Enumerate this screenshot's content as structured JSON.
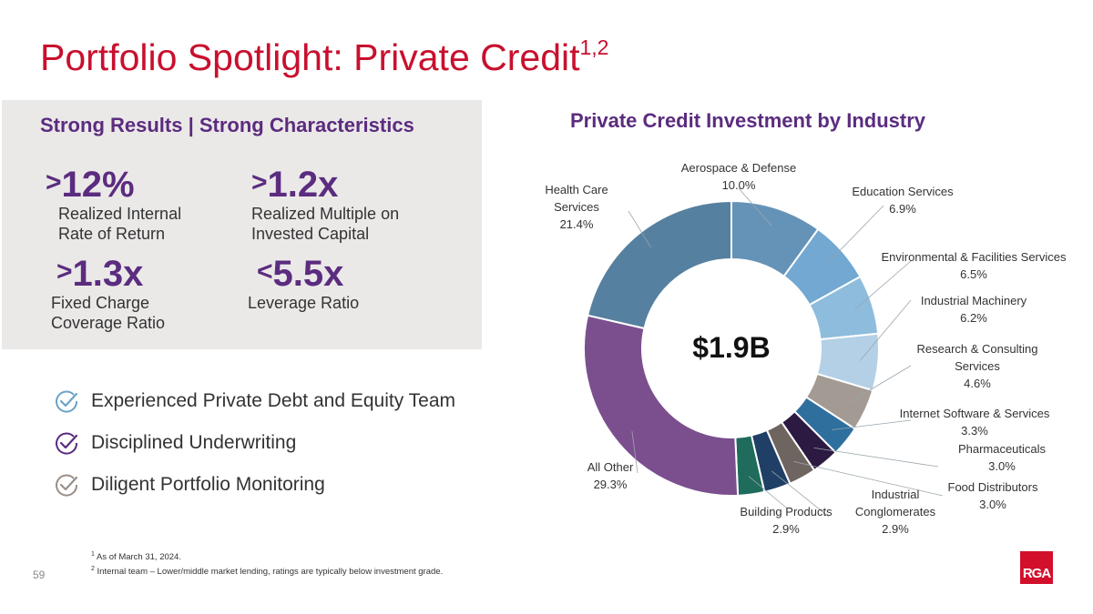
{
  "slide": {
    "title": "Portfolio Spotlight: Private Credit",
    "title_sup": "1,2",
    "page_number": "59",
    "logo_text": "RGA"
  },
  "panel": {
    "heading": "Strong Results | Strong Characteristics",
    "metrics": [
      {
        "symbol": ">",
        "value": "12%",
        "label1": "Realized Internal",
        "label2": "Rate of Return"
      },
      {
        "symbol": ">",
        "value": "1.2x",
        "label1": "Realized Multiple on",
        "label2": "Invested Capital"
      },
      {
        "symbol": ">",
        "value": "1.3x",
        "label1": "Fixed Charge",
        "label2": "Coverage Ratio"
      },
      {
        "symbol": "<",
        "value": "5.5x",
        "label1": "Leverage Ratio",
        "label2": ""
      }
    ]
  },
  "bullets": [
    {
      "text": "Experienced Private Debt and Equity Team",
      "icon": "check-icon",
      "color": "#6ba3c9"
    },
    {
      "text": "Disciplined Underwriting",
      "icon": "check-icon",
      "color": "#5b2c7f"
    },
    {
      "text": "Diligent Portfolio Monitoring",
      "icon": "check-icon",
      "color": "#9a8f87"
    }
  ],
  "chart_data": {
    "type": "pie",
    "title": "Private Credit Investment by Industry",
    "center_label": "$1.9B",
    "slices": [
      {
        "name": "Aerospace & Defense",
        "value": 10.0,
        "label": "10.0%",
        "color": "#6593b8"
      },
      {
        "name": "Education Services",
        "value": 6.9,
        "label": "6.9%",
        "color": "#72a8d1"
      },
      {
        "name": "Environmental & Facilities Services",
        "value": 6.5,
        "label": "6.5%",
        "color": "#8ebcdd"
      },
      {
        "name": "Industrial Machinery",
        "value": 6.2,
        "label": "6.2%",
        "color": "#b3d0e6"
      },
      {
        "name": "Research & Consulting Services",
        "value": 4.6,
        "label": "4.6%",
        "color": "#a29a93"
      },
      {
        "name": "Internet Software & Services",
        "value": 3.3,
        "label": "3.3%",
        "color": "#2e6f9e"
      },
      {
        "name": "Pharmaceuticals",
        "value": 3.0,
        "label": "3.0%",
        "color": "#2c1a42"
      },
      {
        "name": "Food Distributors",
        "value": 3.0,
        "label": "3.0%",
        "color": "#6e6460"
      },
      {
        "name": "Industrial Conglomerates",
        "value": 2.9,
        "label": "2.9%",
        "color": "#1f3f66"
      },
      {
        "name": "Building Products",
        "value": 2.9,
        "label": "2.9%",
        "color": "#1f6b5c"
      },
      {
        "name": "All Other",
        "value": 29.3,
        "label": "29.3%",
        "color": "#7b4f8e"
      },
      {
        "name": "Health Care Services",
        "value": 21.4,
        "label": "21.4%",
        "color": "#56809f"
      }
    ],
    "labels": [
      {
        "lines": [
          "Aerospace & Defense",
          "10.0%"
        ]
      },
      {
        "lines": [
          "Education Services",
          "6.9%"
        ]
      },
      {
        "lines": [
          "Environmental & Facilities Services",
          "6.5%"
        ]
      },
      {
        "lines": [
          "Industrial Machinery",
          "6.2%"
        ]
      },
      {
        "lines": [
          "Research & Consulting",
          "Services",
          "4.6%"
        ]
      },
      {
        "lines": [
          "Internet Software & Services",
          "3.3%"
        ]
      },
      {
        "lines": [
          "Pharmaceuticals",
          "3.0%"
        ]
      },
      {
        "lines": [
          "Food Distributors",
          "3.0%"
        ]
      },
      {
        "lines": [
          "Industrial",
          "Conglomerates",
          "2.9%"
        ]
      },
      {
        "lines": [
          "Building Products",
          "2.9%"
        ]
      },
      {
        "lines": [
          "All Other",
          "29.3%"
        ]
      },
      {
        "lines": [
          "Health Care",
          "Services",
          "21.4%"
        ]
      }
    ]
  },
  "footnotes": [
    {
      "mark": "1",
      "text": "As of March 31, 2024."
    },
    {
      "mark": "2",
      "text": "Internal team – Lower/middle market lending, ratings are typically below investment grade."
    }
  ]
}
